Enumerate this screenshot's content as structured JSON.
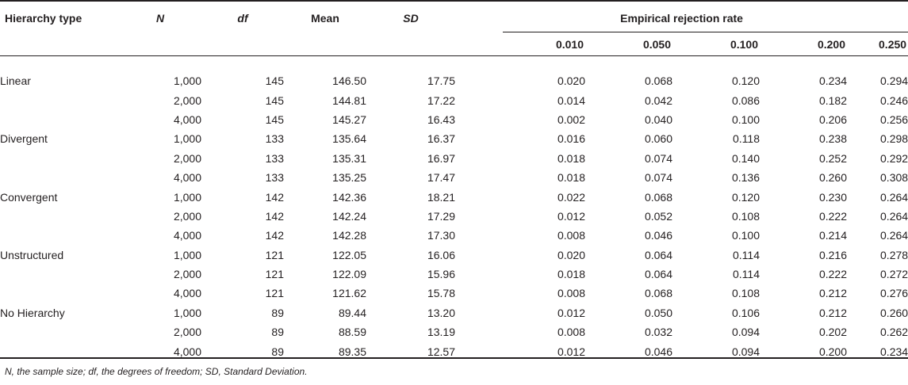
{
  "table": {
    "headers": {
      "hierarchy_type": "Hierarchy type",
      "n": "N",
      "df": "df",
      "mean": "Mean",
      "sd": "SD",
      "rejection_group": "Empirical rejection rate",
      "alpha_levels": [
        "0.010",
        "0.050",
        "0.100",
        "0.200",
        "0.250"
      ]
    },
    "rows": [
      {
        "type": "Linear",
        "n": "1,000",
        "df": "145",
        "mean": "146.50",
        "sd": "17.75",
        "rates": [
          "0.020",
          "0.068",
          "0.120",
          "0.234",
          "0.294"
        ]
      },
      {
        "type": "",
        "n": "2,000",
        "df": "145",
        "mean": "144.81",
        "sd": "17.22",
        "rates": [
          "0.014",
          "0.042",
          "0.086",
          "0.182",
          "0.246"
        ]
      },
      {
        "type": "",
        "n": "4,000",
        "df": "145",
        "mean": "145.27",
        "sd": "16.43",
        "rates": [
          "0.002",
          "0.040",
          "0.100",
          "0.206",
          "0.256"
        ]
      },
      {
        "type": "Divergent",
        "n": "1,000",
        "df": "133",
        "mean": "135.64",
        "sd": "16.37",
        "rates": [
          "0.016",
          "0.060",
          "0.118",
          "0.238",
          "0.298"
        ]
      },
      {
        "type": "",
        "n": "2,000",
        "df": "133",
        "mean": "135.31",
        "sd": "16.97",
        "rates": [
          "0.018",
          "0.074",
          "0.140",
          "0.252",
          "0.292"
        ]
      },
      {
        "type": "",
        "n": "4,000",
        "df": "133",
        "mean": "135.25",
        "sd": "17.47",
        "rates": [
          "0.018",
          "0.074",
          "0.136",
          "0.260",
          "0.308"
        ]
      },
      {
        "type": "Convergent",
        "n": "1,000",
        "df": "142",
        "mean": "142.36",
        "sd": "18.21",
        "rates": [
          "0.022",
          "0.068",
          "0.120",
          "0.230",
          "0.264"
        ]
      },
      {
        "type": "",
        "n": "2,000",
        "df": "142",
        "mean": "142.24",
        "sd": "17.29",
        "rates": [
          "0.012",
          "0.052",
          "0.108",
          "0.222",
          "0.264"
        ]
      },
      {
        "type": "",
        "n": "4,000",
        "df": "142",
        "mean": "142.28",
        "sd": "17.30",
        "rates": [
          "0.008",
          "0.046",
          "0.100",
          "0.214",
          "0.264"
        ]
      },
      {
        "type": "Unstructured",
        "n": "1,000",
        "df": "121",
        "mean": "122.05",
        "sd": "16.06",
        "rates": [
          "0.020",
          "0.064",
          "0.114",
          "0.216",
          "0.278"
        ]
      },
      {
        "type": "",
        "n": "2,000",
        "df": "121",
        "mean": "122.09",
        "sd": "15.96",
        "rates": [
          "0.018",
          "0.064",
          "0.114",
          "0.222",
          "0.272"
        ]
      },
      {
        "type": "",
        "n": "4,000",
        "df": "121",
        "mean": "121.62",
        "sd": "15.78",
        "rates": [
          "0.008",
          "0.068",
          "0.108",
          "0.212",
          "0.276"
        ]
      },
      {
        "type": "No Hierarchy",
        "n": "1,000",
        "df": "89",
        "mean": "89.44",
        "sd": "13.20",
        "rates": [
          "0.012",
          "0.050",
          "0.106",
          "0.212",
          "0.260"
        ]
      },
      {
        "type": "",
        "n": "2,000",
        "df": "89",
        "mean": "88.59",
        "sd": "13.19",
        "rates": [
          "0.008",
          "0.032",
          "0.094",
          "0.202",
          "0.262"
        ]
      },
      {
        "type": "",
        "n": "4,000",
        "df": "89",
        "mean": "89.35",
        "sd": "12.57",
        "rates": [
          "0.012",
          "0.046",
          "0.094",
          "0.200",
          "0.234"
        ]
      }
    ],
    "footnote": "N, the sample size; df, the degrees of freedom; SD, Standard Deviation."
  }
}
